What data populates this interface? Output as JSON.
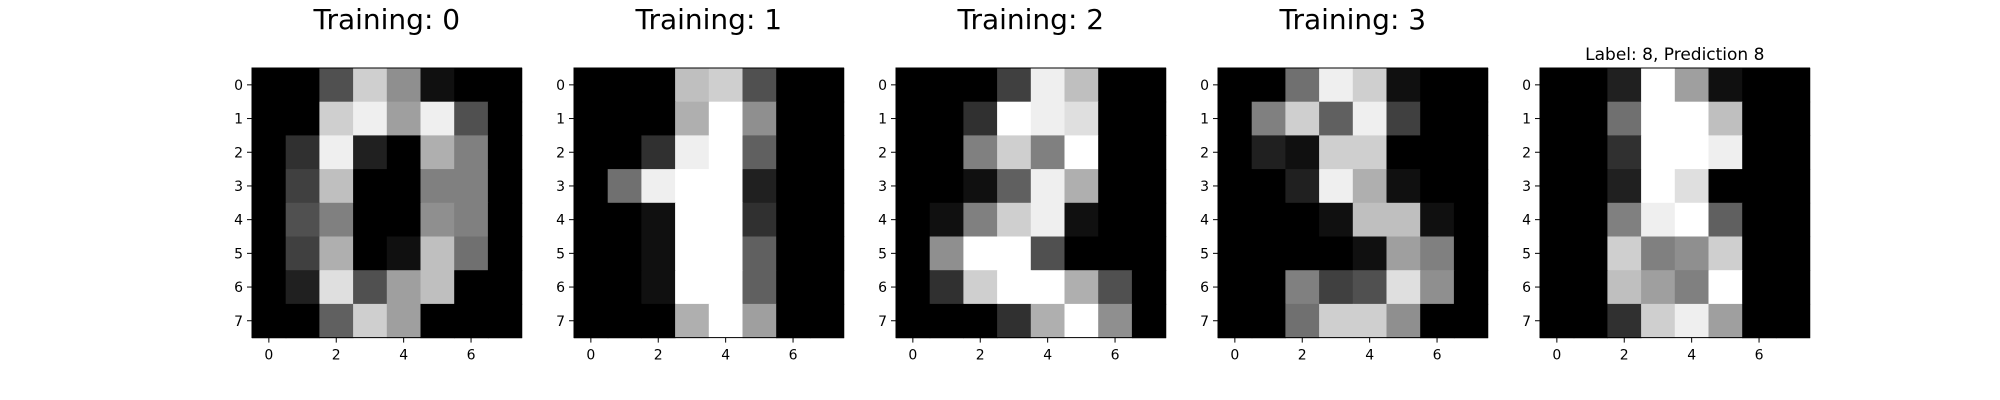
{
  "chart_data": [
    {
      "type": "heatmap",
      "title": "Training: 0",
      "colormap": "gray",
      "x_ticks": [
        0,
        2,
        4,
        6
      ],
      "y_ticks": [
        0,
        1,
        2,
        3,
        4,
        5,
        6,
        7
      ],
      "values": [
        [
          0,
          0,
          5,
          13,
          9,
          1,
          0,
          0
        ],
        [
          0,
          0,
          13,
          15,
          10,
          15,
          5,
          0
        ],
        [
          0,
          3,
          15,
          2,
          0,
          11,
          8,
          0
        ],
        [
          0,
          4,
          12,
          0,
          0,
          8,
          8,
          0
        ],
        [
          0,
          5,
          8,
          0,
          0,
          9,
          8,
          0
        ],
        [
          0,
          4,
          11,
          0,
          1,
          12,
          7,
          0
        ],
        [
          0,
          2,
          14,
          5,
          10,
          12,
          0,
          0
        ],
        [
          0,
          0,
          6,
          13,
          10,
          0,
          0,
          0
        ]
      ]
    },
    {
      "type": "heatmap",
      "title": "Training: 1",
      "colormap": "gray",
      "x_ticks": [
        0,
        2,
        4,
        6
      ],
      "y_ticks": [
        0,
        1,
        2,
        3,
        4,
        5,
        6,
        7
      ],
      "values": [
        [
          0,
          0,
          0,
          12,
          13,
          5,
          0,
          0
        ],
        [
          0,
          0,
          0,
          11,
          16,
          9,
          0,
          0
        ],
        [
          0,
          0,
          3,
          15,
          16,
          6,
          0,
          0
        ],
        [
          0,
          7,
          15,
          16,
          16,
          2,
          0,
          0
        ],
        [
          0,
          0,
          1,
          16,
          16,
          3,
          0,
          0
        ],
        [
          0,
          0,
          1,
          16,
          16,
          6,
          0,
          0
        ],
        [
          0,
          0,
          1,
          16,
          16,
          6,
          0,
          0
        ],
        [
          0,
          0,
          0,
          11,
          16,
          10,
          0,
          0
        ]
      ]
    },
    {
      "type": "heatmap",
      "title": "Training: 2",
      "colormap": "gray",
      "x_ticks": [
        0,
        2,
        4,
        6
      ],
      "y_ticks": [
        0,
        1,
        2,
        3,
        4,
        5,
        6,
        7
      ],
      "values": [
        [
          0,
          0,
          0,
          4,
          15,
          12,
          0,
          0
        ],
        [
          0,
          0,
          3,
          16,
          15,
          14,
          0,
          0
        ],
        [
          0,
          0,
          8,
          13,
          8,
          16,
          0,
          0
        ],
        [
          0,
          0,
          1,
          6,
          15,
          11,
          0,
          0
        ],
        [
          0,
          1,
          8,
          13,
          15,
          1,
          0,
          0
        ],
        [
          0,
          9,
          16,
          16,
          5,
          0,
          0,
          0
        ],
        [
          0,
          3,
          13,
          16,
          16,
          11,
          5,
          0
        ],
        [
          0,
          0,
          0,
          3,
          11,
          16,
          9,
          0
        ]
      ]
    },
    {
      "type": "heatmap",
      "title": "Training: 3",
      "colormap": "gray",
      "x_ticks": [
        0,
        2,
        4,
        6
      ],
      "y_ticks": [
        0,
        1,
        2,
        3,
        4,
        5,
        6,
        7
      ],
      "values": [
        [
          0,
          0,
          7,
          15,
          13,
          1,
          0,
          0
        ],
        [
          0,
          8,
          13,
          6,
          15,
          4,
          0,
          0
        ],
        [
          0,
          2,
          1,
          13,
          13,
          0,
          0,
          0
        ],
        [
          0,
          0,
          2,
          15,
          11,
          1,
          0,
          0
        ],
        [
          0,
          0,
          0,
          1,
          12,
          12,
          1,
          0
        ],
        [
          0,
          0,
          0,
          0,
          1,
          10,
          8,
          0
        ],
        [
          0,
          0,
          8,
          4,
          5,
          14,
          9,
          0
        ],
        [
          0,
          0,
          7,
          13,
          13,
          9,
          0,
          0
        ]
      ]
    },
    {
      "type": "heatmap",
      "title": "Label: 8, Prediction 8",
      "colormap": "gray",
      "x_ticks": [
        0,
        2,
        4,
        6
      ],
      "y_ticks": [
        0,
        1,
        2,
        3,
        4,
        5,
        6,
        7
      ],
      "values": [
        [
          0,
          0,
          2,
          16,
          10,
          1,
          0,
          0
        ],
        [
          0,
          0,
          7,
          16,
          16,
          12,
          0,
          0
        ],
        [
          0,
          0,
          3,
          16,
          16,
          15,
          0,
          0
        ],
        [
          0,
          0,
          2,
          16,
          14,
          0,
          0,
          0
        ],
        [
          0,
          0,
          8,
          15,
          16,
          6,
          0,
          0
        ],
        [
          0,
          0,
          13,
          8,
          9,
          13,
          0,
          0
        ],
        [
          0,
          0,
          12,
          10,
          8,
          16,
          0,
          0
        ],
        [
          0,
          0,
          3,
          13,
          15,
          10,
          0,
          0
        ]
      ]
    }
  ]
}
